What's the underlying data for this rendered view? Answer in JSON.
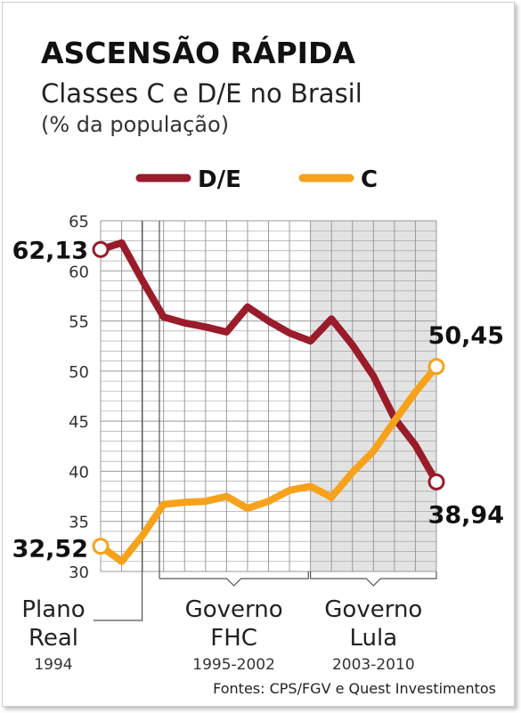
{
  "title": "ASCENSÃO RÁPIDA",
  "subtitle": "Classes C e D/E no Brasil",
  "unit": "(% da população)",
  "source": "Fontes: CPS/FGV e Quest Investimentos",
  "colors": {
    "de": "#9a1b2a",
    "c": "#f7a21b",
    "grid": "#9a9a9a",
    "lula_shade": "#e3e3e3"
  },
  "periods": [
    {
      "line1": "Plano",
      "line2": "Real",
      "years": "1994"
    },
    {
      "line1": "Governo",
      "line2": "FHC",
      "years": "1995-2002"
    },
    {
      "line1": "Governo",
      "line2": "Lula",
      "years": "2003-2010"
    }
  ],
  "chart_data": {
    "type": "line",
    "ylim": [
      30,
      65
    ],
    "yticks": [
      30,
      35,
      40,
      45,
      50,
      55,
      60,
      65
    ],
    "x": [
      1993,
      1994,
      1995,
      1996,
      1997,
      1998,
      1999,
      2000,
      2001,
      2002,
      2003,
      2004,
      2005,
      2006,
      2007,
      2008
    ],
    "series": [
      {
        "name": "D/E",
        "values": [
          62.13,
          62.8,
          59.0,
          55.4,
          54.8,
          54.4,
          53.9,
          56.4,
          55.0,
          53.8,
          53.0,
          55.2,
          52.6,
          49.5,
          45.3,
          42.6
        ]
      },
      {
        "name": "C",
        "values": [
          32.52,
          31.0,
          33.6,
          36.7,
          36.9,
          37.0,
          37.5,
          36.3,
          37.0,
          38.1,
          38.5,
          37.4,
          39.9,
          42.0,
          45.0,
          47.9
        ]
      }
    ],
    "end_x": 2009,
    "end_values": {
      "D/E": 38.94,
      "C": 50.45
    },
    "labels": {
      "de_start": "62,13",
      "c_start": "32,52",
      "de_end": "38,94",
      "c_end": "50,45"
    }
  }
}
